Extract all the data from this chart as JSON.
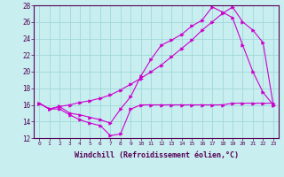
{
  "xlabel": "Windchill (Refroidissement éolien,°C)",
  "bg_color": "#c8eef0",
  "grid_color": "#a0d8d8",
  "line_color": "#cc00cc",
  "xlim": [
    -0.5,
    23.5
  ],
  "ylim": [
    12,
    28
  ],
  "yticks": [
    12,
    14,
    16,
    18,
    20,
    22,
    24,
    26,
    28
  ],
  "xticks": [
    0,
    1,
    2,
    3,
    4,
    5,
    6,
    7,
    8,
    9,
    10,
    11,
    12,
    13,
    14,
    15,
    16,
    17,
    18,
    19,
    20,
    21,
    22,
    23
  ],
  "line1_x": [
    0,
    1,
    2,
    3,
    4,
    5,
    6,
    7,
    8,
    9,
    10,
    11,
    12,
    13,
    14,
    15,
    16,
    17,
    18,
    19,
    20,
    21,
    22,
    23
  ],
  "line1_y": [
    16.2,
    15.5,
    15.8,
    16.0,
    16.3,
    16.5,
    16.8,
    17.2,
    17.8,
    18.5,
    19.2,
    20.0,
    20.8,
    21.8,
    22.8,
    23.8,
    25.0,
    26.0,
    27.0,
    27.8,
    26.0,
    25.0,
    23.5,
    16.0
  ],
  "line2_x": [
    0,
    1,
    2,
    3,
    4,
    5,
    6,
    7,
    8,
    9,
    10,
    11,
    12,
    13,
    14,
    15,
    16,
    17,
    18,
    19,
    20,
    21,
    22,
    23
  ],
  "line2_y": [
    16.2,
    15.5,
    15.8,
    15.0,
    14.8,
    14.5,
    14.2,
    13.8,
    15.5,
    17.0,
    19.5,
    21.5,
    23.2,
    23.8,
    24.5,
    25.5,
    26.2,
    27.8,
    27.2,
    26.5,
    23.2,
    20.0,
    17.5,
    16.0
  ],
  "line3_x": [
    0,
    1,
    2,
    3,
    4,
    5,
    6,
    7,
    8,
    9,
    10,
    11,
    12,
    13,
    14,
    15,
    16,
    17,
    18,
    19,
    20,
    21,
    22,
    23
  ],
  "line3_y": [
    16.2,
    15.5,
    15.5,
    14.8,
    14.2,
    13.8,
    13.5,
    12.3,
    12.5,
    15.5,
    16.0,
    16.0,
    16.0,
    16.0,
    16.0,
    16.0,
    16.0,
    16.0,
    16.0,
    16.2,
    16.2,
    16.2,
    16.2,
    16.2
  ]
}
